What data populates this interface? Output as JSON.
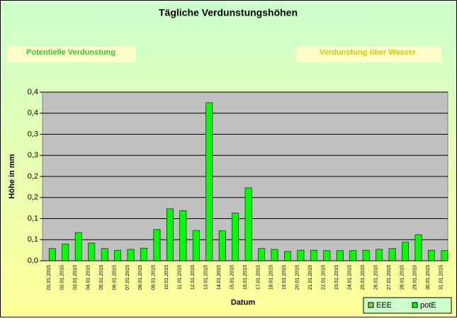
{
  "chart_data": {
    "type": "bar",
    "title": "Tägliche Verdunstungshöhen",
    "annotations": [
      "Potentielle Verdunstung",
      "Verdunstung über Wasser"
    ],
    "y_label": "Höhe in mm",
    "x_label": "Datum",
    "categories": [
      "01.01.2015",
      "02.01.2015",
      "03.01.2015",
      "04.01.2015",
      "05.01.2015",
      "06.01.2015",
      "07.01.2015",
      "08.01.2015",
      "09.01.2015",
      "10.01.2015",
      "11.01.2015",
      "12.01.2015",
      "13.01.2015",
      "14.01.2015",
      "15.01.2015",
      "16.01.2015",
      "17.01.2015",
      "18.01.2015",
      "19.01.2015",
      "20.01.2015",
      "21.01.2015",
      "22.01.2015",
      "23.01.2015",
      "24.01.2015",
      "25.01.2015",
      "26.01.2015",
      "27.01.2015",
      "28.01.2015",
      "29.01.2015",
      "30.01.2015",
      "31.01.2015"
    ],
    "series": [
      {
        "name": "EEE",
        "color": "#99cc33",
        "values": [
          null,
          null,
          null,
          null,
          null,
          null,
          null,
          null,
          null,
          null,
          null,
          null,
          null,
          null,
          null,
          null,
          null,
          null,
          null,
          null,
          null,
          null,
          null,
          null,
          null,
          null,
          null,
          null,
          null,
          null,
          null
        ]
      },
      {
        "name": "potE",
        "color": "#00ff00",
        "values": [
          0.029,
          0.04,
          0.067,
          0.042,
          0.029,
          0.025,
          0.027,
          0.03,
          0.074,
          0.123,
          0.119,
          0.072,
          0.375,
          0.071,
          0.113,
          0.173,
          0.029,
          0.027,
          0.022,
          0.025,
          0.025,
          0.024,
          0.024,
          0.024,
          0.025,
          0.027,
          0.029,
          0.044,
          0.062,
          0.025,
          0.024
        ]
      }
    ],
    "ylim": [
      0,
      0.4
    ],
    "yticks": [
      {
        "value": 0,
        "label": "0,0"
      },
      {
        "value": 0.05,
        "label": "0,1"
      },
      {
        "value": 0.1,
        "label": "0,1"
      },
      {
        "value": 0.15,
        "label": "0,2"
      },
      {
        "value": 0.2,
        "label": "0,2"
      },
      {
        "value": 0.25,
        "label": "0,3"
      },
      {
        "value": 0.3,
        "label": "0,3"
      },
      {
        "value": 0.35,
        "label": "0,4"
      },
      {
        "value": 0.4,
        "label": "0,4"
      }
    ],
    "grid": true
  }
}
